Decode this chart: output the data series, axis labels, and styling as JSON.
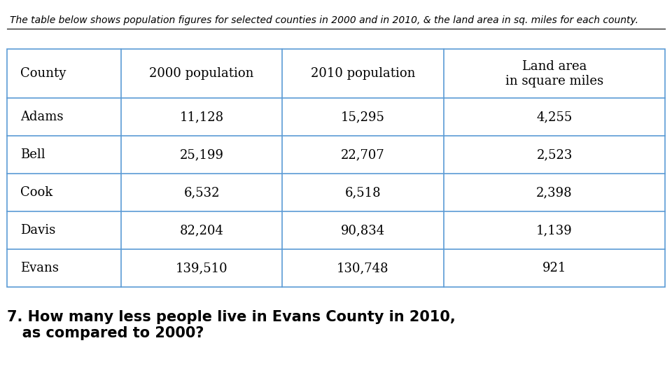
{
  "title": "The table below shows population figures for selected counties in 2000 and in 2010, & the land area in sq. miles for each county.",
  "headers": [
    "County",
    "2000 population",
    "2010 population",
    "Land area\nin square miles"
  ],
  "rows": [
    [
      "Adams",
      "11,128",
      "15,295",
      "4,255"
    ],
    [
      "Bell",
      "25,199",
      "22,707",
      "2,523"
    ],
    [
      "Cook",
      "6,532",
      "6,518",
      "2,398"
    ],
    [
      "Davis",
      "82,204",
      "90,834",
      "1,139"
    ],
    [
      "Evans",
      "139,510",
      "130,748",
      "921"
    ]
  ],
  "question": "7. How many less people live in Evans County in 2010,\n   as compared to 2000?",
  "bg_color": "#ffffff",
  "line_color": "#5b9bd5",
  "header_font_size": 13,
  "cell_font_size": 13,
  "title_font_size": 10,
  "question_font_size": 15
}
